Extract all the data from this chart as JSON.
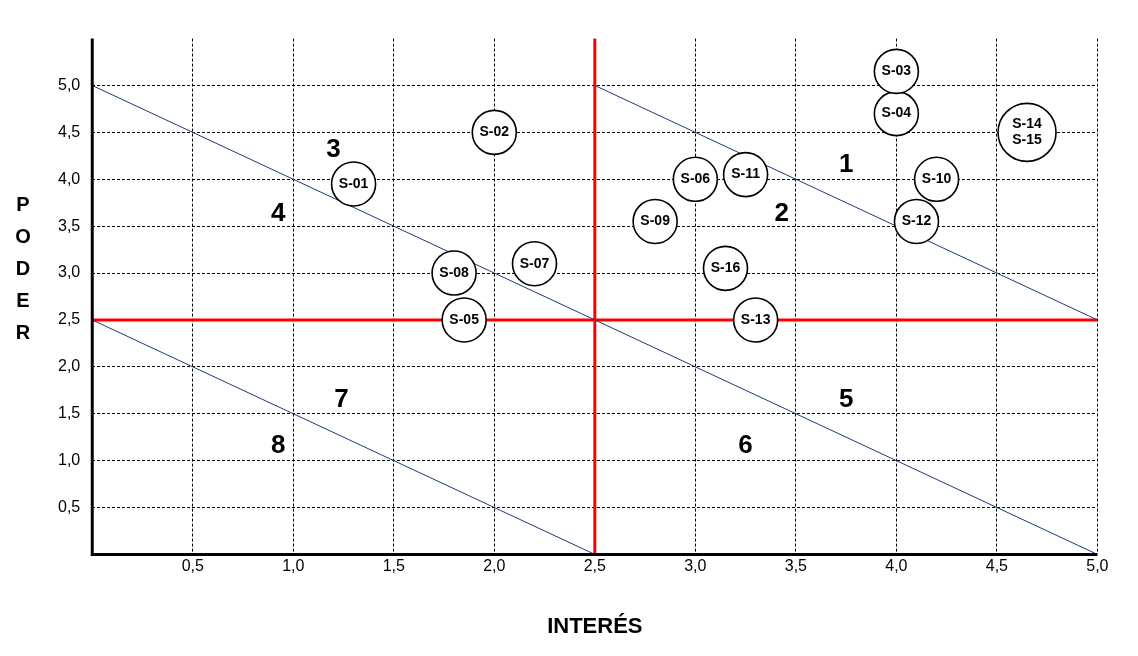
{
  "chart_data": {
    "type": "scatter",
    "xlabel": "INTERÉS",
    "ylabel": "PODER",
    "xlim": [
      0,
      5
    ],
    "ylim": [
      0,
      5.5
    ],
    "xticks": [
      {
        "value": 0.5,
        "label": "0,5"
      },
      {
        "value": 1,
        "label": "1,0"
      },
      {
        "value": 1.5,
        "label": "1,5"
      },
      {
        "value": 2,
        "label": "2,0"
      },
      {
        "value": 2.5,
        "label": "2,5"
      },
      {
        "value": 3,
        "label": "3,0"
      },
      {
        "value": 3.5,
        "label": "3,5"
      },
      {
        "value": 4,
        "label": "4,0"
      },
      {
        "value": 4.5,
        "label": "4,5"
      },
      {
        "value": 5,
        "label": "5,0"
      }
    ],
    "yticks": [
      {
        "value": 0.5,
        "label": "0,5"
      },
      {
        "value": 1,
        "label": "1,0"
      },
      {
        "value": 1.5,
        "label": "1,5"
      },
      {
        "value": 2,
        "label": "2,0"
      },
      {
        "value": 2.5,
        "label": "2,5"
      },
      {
        "value": 3,
        "label": "3,0"
      },
      {
        "value": 3.5,
        "label": "3,5"
      },
      {
        "value": 4,
        "label": "4,0"
      },
      {
        "value": 4.5,
        "label": "4,5"
      },
      {
        "value": 5,
        "label": "5,0"
      }
    ],
    "grid": true,
    "legend": false,
    "marker": "circle",
    "series": [
      {
        "type": "line",
        "marker": "none",
        "color": "#1f3a7a",
        "x": [
          0,
          5
        ],
        "values": [
          5,
          0
        ]
      },
      {
        "type": "line",
        "marker": "none",
        "color": "#1f3a7a",
        "x": [
          2.5,
          5
        ],
        "values": [
          5,
          2.5
        ]
      },
      {
        "type": "line",
        "marker": "none",
        "color": "#1f3a7a",
        "x": [
          0,
          2.5
        ],
        "values": [
          2.5,
          0
        ]
      },
      {
        "type": "line",
        "marker": "none",
        "color": "#ff0000",
        "x": [
          2.5,
          2.5
        ],
        "values": [
          0,
          5.5
        ]
      },
      {
        "type": "line",
        "marker": "none",
        "color": "#ff0000",
        "x": [
          0,
          5
        ],
        "values": [
          2.5,
          2.5
        ]
      },
      {
        "name": "S-01",
        "color": "#000000",
        "x": [
          1.3
        ],
        "values": [
          3.95
        ]
      },
      {
        "name": "S-02",
        "color": "#000000",
        "x": [
          2
        ],
        "values": [
          4.5
        ]
      },
      {
        "name": "S-03",
        "color": "#000000",
        "x": [
          4
        ],
        "values": [
          5.15
        ]
      },
      {
        "name": "S-04",
        "color": "#000000",
        "x": [
          4
        ],
        "values": [
          4.7
        ]
      },
      {
        "name": "S-05",
        "color": "#000000",
        "x": [
          1.85
        ],
        "values": [
          2.5
        ]
      },
      {
        "name": "S-06",
        "color": "#000000",
        "x": [
          3
        ],
        "values": [
          4
        ]
      },
      {
        "name": "S-07",
        "color": "#000000",
        "x": [
          2.2
        ],
        "values": [
          3.1
        ]
      },
      {
        "name": "S-08",
        "color": "#000000",
        "x": [
          1.8
        ],
        "values": [
          3
        ]
      },
      {
        "name": "S-09",
        "color": "#000000",
        "x": [
          2.8
        ],
        "values": [
          3.55
        ]
      },
      {
        "name": "S-10",
        "color": "#000000",
        "x": [
          4.2
        ],
        "values": [
          4
        ]
      },
      {
        "name": "S-11",
        "color": "#000000",
        "x": [
          3.25
        ],
        "values": [
          4.05
        ]
      },
      {
        "name": "S-12",
        "color": "#000000",
        "x": [
          4.1
        ],
        "values": [
          3.55
        ]
      },
      {
        "name": "S-13",
        "color": "#000000",
        "x": [
          3.3
        ],
        "values": [
          2.5
        ]
      },
      {
        "color": "#000000",
        "x": [
          4.65
        ],
        "values": [
          4.5
        ]
      },
      {
        "name": "S-16",
        "color": "#000000",
        "x": [
          3.15
        ],
        "values": [
          3.05
        ]
      }
    ],
    "annotations": [
      {
        "text": "S-14",
        "x": 4.65,
        "y": 4.5
      },
      {
        "text": "S-15",
        "x": 4.65,
        "y": 4.5
      },
      "1",
      "2",
      "3",
      "4",
      "5",
      "6",
      "7",
      "8"
    ]
  }
}
